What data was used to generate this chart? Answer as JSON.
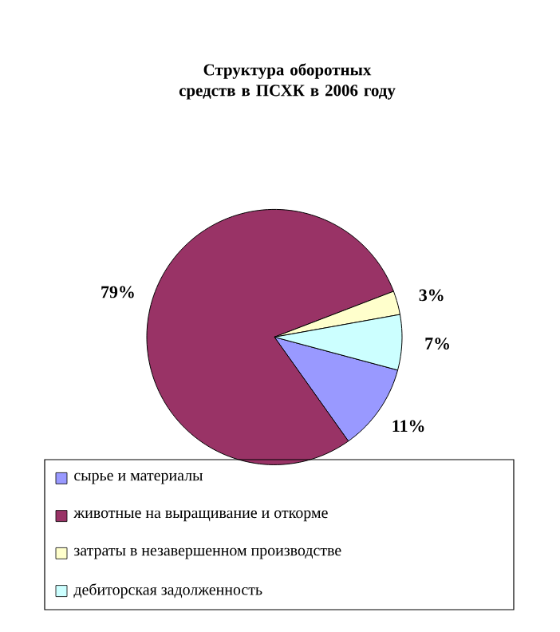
{
  "chart_data": {
    "type": "pie",
    "title": "Структура оборотных средств в ПСХК в 2006 году",
    "categories": [
      "сырье и материалы",
      "животные на выращивание и откорме",
      "затраты в незавершенном производстве",
      "дебиторская задолженность"
    ],
    "values": [
      11,
      79,
      3,
      7
    ],
    "colors": [
      "#9999ff",
      "#993366",
      "#ffffcc",
      "#ccffff"
    ],
    "value_labels": [
      "11%",
      "79%",
      "3%",
      "7%"
    ],
    "legend": "bottom"
  }
}
